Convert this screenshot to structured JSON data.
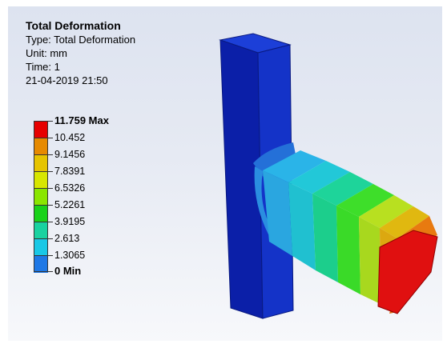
{
  "result": {
    "title": "Total Deformation",
    "type_line": "Type: Total Deformation",
    "unit_line": "Unit: mm",
    "time_line": "Time: 1",
    "timestamp": "21-04-2019 21:50"
  },
  "legend": {
    "max_label": "11.759 Max",
    "min_label": "0 Min",
    "levels": [
      "10.452",
      "9.1456",
      "7.8391",
      "6.5326",
      "5.2261",
      "3.9195",
      "2.613",
      "1.3065"
    ],
    "colors": [
      "#e60000",
      "#e68a00",
      "#e6c400",
      "#d7e600",
      "#8ae600",
      "#19d219",
      "#19d2a0",
      "#19c8e6",
      "#1e78e6",
      "#0a14c8"
    ]
  }
}
